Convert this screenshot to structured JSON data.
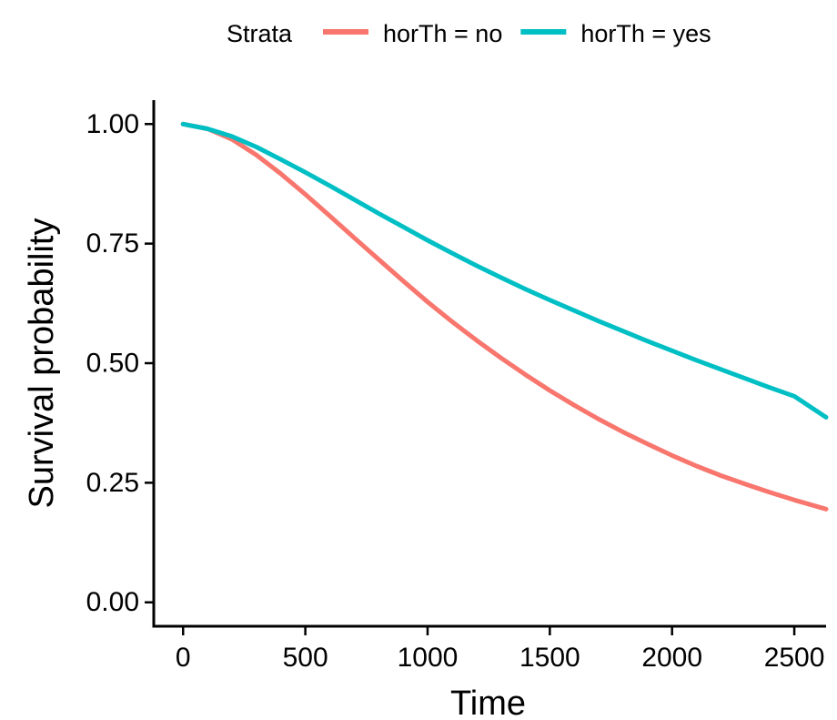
{
  "chart_data": {
    "type": "line",
    "xlabel": "Time",
    "ylabel": "Survival probability",
    "xlim": [
      -120,
      2630
    ],
    "ylim": [
      -0.05,
      1.05
    ],
    "xticks": [
      0,
      500,
      1000,
      1500,
      2000,
      2500
    ],
    "xtick_labels": [
      "0",
      "500",
      "1000",
      "1500",
      "2000",
      "2500"
    ],
    "yticks": [
      0,
      0.25,
      0.5,
      0.75,
      1.0
    ],
    "ytick_labels": [
      "0.00",
      "0.25",
      "0.50",
      "0.75",
      "1.00"
    ],
    "grid": false,
    "legend": {
      "title": "Strata",
      "position": "top",
      "entries": [
        "horTh = no",
        "horTh = yes"
      ]
    },
    "series": [
      {
        "name": "horTh = no",
        "color": "#F8766D",
        "x": [
          0,
          100,
          200,
          300,
          400,
          500,
          600,
          700,
          800,
          900,
          1000,
          1100,
          1200,
          1300,
          1400,
          1500,
          1600,
          1700,
          1800,
          1900,
          2000,
          2100,
          2200,
          2300,
          2400,
          2500,
          2630
        ],
        "y": [
          1.0,
          0.99,
          0.968,
          0.935,
          0.896,
          0.853,
          0.808,
          0.762,
          0.717,
          0.672,
          0.628,
          0.587,
          0.548,
          0.511,
          0.476,
          0.443,
          0.412,
          0.383,
          0.356,
          0.331,
          0.307,
          0.285,
          0.265,
          0.247,
          0.23,
          0.214,
          0.195
        ]
      },
      {
        "name": "horTh = yes",
        "color": "#00BFC4",
        "x": [
          0,
          100,
          200,
          300,
          400,
          500,
          600,
          700,
          800,
          900,
          1000,
          1100,
          1200,
          1300,
          1400,
          1500,
          1600,
          1700,
          1800,
          1900,
          2000,
          2100,
          2200,
          2300,
          2400,
          2500,
          2630
        ],
        "y": [
          1.0,
          0.99,
          0.974,
          0.952,
          0.926,
          0.899,
          0.871,
          0.842,
          0.813,
          0.785,
          0.757,
          0.73,
          0.704,
          0.679,
          0.655,
          0.632,
          0.61,
          0.588,
          0.567,
          0.546,
          0.526,
          0.506,
          0.487,
          0.468,
          0.449,
          0.431,
          0.387
        ]
      }
    ]
  }
}
